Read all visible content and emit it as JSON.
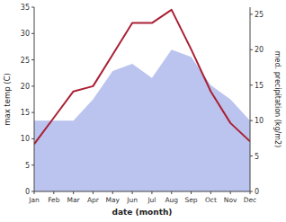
{
  "chart_data": {
    "type": "line",
    "categories": [
      "Jan",
      "Feb",
      "Mar",
      "Apr",
      "May",
      "Jun",
      "Jul",
      "Aug",
      "Sep",
      "Oct",
      "Nov",
      "Dec"
    ],
    "xlabel": "date (month)",
    "ylabel": "max temp (C)",
    "y2label": "med. precipitation (kg/m2)",
    "ylim": [
      0,
      35
    ],
    "yticks": [
      0,
      5,
      10,
      15,
      20,
      25,
      30,
      35
    ],
    "y2lim": [
      0,
      26
    ],
    "y2ticks": [
      0,
      5,
      10,
      15,
      20,
      25
    ],
    "grid": false,
    "series": [
      {
        "type": "line",
        "color": "#aa2035",
        "values": [
          9,
          14,
          19,
          20,
          26,
          32,
          32,
          34.5,
          27,
          19,
          13,
          9.5
        ]
      },
      {
        "type": "area",
        "axis": "y2",
        "color": "#bbc4ee",
        "values": [
          10,
          10,
          10,
          13,
          17,
          18,
          16,
          20,
          19,
          15,
          13,
          10
        ]
      }
    ]
  }
}
